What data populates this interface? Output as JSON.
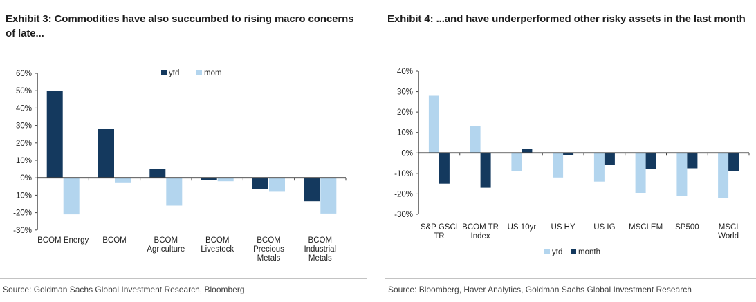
{
  "page": {
    "panels": [
      {
        "title": "Exhibit 3: Commodities have also succumbed to rising macro concerns of late...",
        "source": "Source: Goldman Sachs Global Investment Research, Bloomberg"
      },
      {
        "title": "Exhibit 4: ...and have underperformed other risky assets in the last month",
        "source": "Source: Bloomberg, Haver Analytics, Goldman Sachs Global Investment Research"
      }
    ]
  },
  "colors": {
    "navy_series": "#14395E",
    "light_blue_series": "#B3D5EE",
    "axis": "#404040",
    "title_text": "#1d1d1d",
    "source_text": "#3f3f3f"
  },
  "chart_data": [
    {
      "type": "bar",
      "title": "Exhibit 3: Commodities have also succumbed to rising macro concerns of late...",
      "categories": [
        "BCOM Energy",
        "BCOM",
        "BCOM\nAgriculture",
        "BCOM\nLivestock",
        "BCOM\nPrecious\nMetals",
        "BCOM\nIndustrial\nMetals"
      ],
      "series": [
        {
          "name": "ytd",
          "color": "#14395E",
          "values": [
            50,
            28,
            5,
            -1.5,
            -6.5,
            -13.5
          ]
        },
        {
          "name": "mom",
          "color": "#B3D5EE",
          "values": [
            -21,
            -3,
            -16,
            -2,
            -8,
            -20.5
          ]
        }
      ],
      "ylim": [
        -30,
        60
      ],
      "ytick_step": 10,
      "ytick_format": "percent",
      "ytick_labels": [
        "60%",
        "50%",
        "40%",
        "30%",
        "20%",
        "10%",
        "0%",
        "-10%",
        "-20%",
        "-30%"
      ],
      "grid": false,
      "legend_position": "top"
    },
    {
      "type": "bar",
      "title": "Exhibit 4: ...and have underperformed other risky assets in the last month",
      "categories": [
        "S&P GSCI\nTR",
        "BCOM TR\nIndex",
        "US 10yr",
        "US HY",
        "US IG",
        "MSCI EM",
        "SP500",
        "MSCI\nWorld"
      ],
      "series": [
        {
          "name": "ytd",
          "color": "#B3D5EE",
          "values": [
            28,
            13,
            -9,
            -12,
            -14,
            -19.5,
            -21,
            -22
          ]
        },
        {
          "name": "month",
          "color": "#14395E",
          "values": [
            -15,
            -17,
            2,
            -1,
            -6,
            -8,
            -7.5,
            -9
          ]
        }
      ],
      "ylim": [
        -30,
        40
      ],
      "ytick_step": 10,
      "ytick_format": "percent",
      "ytick_labels": [
        "40%",
        "30%",
        "20%",
        "10%",
        "0%",
        "-10%",
        "-20%",
        "-30%"
      ],
      "grid": false,
      "legend_position": "bottom"
    }
  ]
}
